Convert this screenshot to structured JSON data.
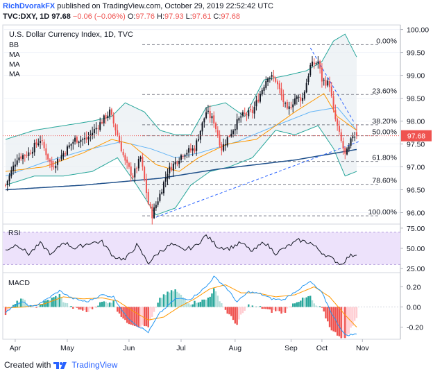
{
  "header": {
    "author": "RichDvorakFX",
    "published": "published on TradingView.com, October 29, 2019 22:52:42 UTC",
    "symbol": "TVC:DXY, 1D",
    "last": "97.68",
    "change": "−0.06 (−0.06%)",
    "ohlc_o_label": "O:",
    "ohlc_o": "97.76",
    "ohlc_h_label": "H:",
    "ohlc_h": "97.93",
    "ohlc_l_label": "L:",
    "ohlc_l": "97.61",
    "ohlc_c_label": "C:",
    "ohlc_c": "97.68"
  },
  "footer": {
    "created_with": "Created with",
    "brand": "TradingView"
  },
  "colors": {
    "up": "#26a69a",
    "down": "#ef5350",
    "candle_up": "#131722",
    "candle_down": "#ef5350",
    "bb": "#26a69a",
    "ma_short": "#ff9800",
    "ma_mid": "#64b5f6",
    "ma_long": "#1e4f8a",
    "trend": "#2962ff",
    "rsi": "#131722",
    "rsi_band": "#ede2fb",
    "macd": "#2196f3",
    "signal": "#ff9800",
    "price_tag": "#ef5350"
  },
  "chart_data": [
    {
      "type": "candlestick",
      "title": "U.S. Dollar Currency Index, 1D, TVC",
      "indicators": [
        "BB",
        "MA",
        "MA",
        "MA"
      ],
      "ylim": [
        95.75,
        100.1
      ],
      "yticks": [
        "100.00",
        "99.50",
        "99.00",
        "98.50",
        "98.00",
        "97.50",
        "97.00",
        "96.50",
        "96.00"
      ],
      "last_price": "97.68",
      "x_labels": [
        "Apr",
        "May",
        "Jun",
        "Jul",
        "Aug",
        "Sep",
        "Oct",
        "Nov"
      ],
      "fibonacci": [
        {
          "label": "0.00%",
          "value": 99.67
        },
        {
          "label": "23.60%",
          "value": 98.58
        },
        {
          "label": "38.20%",
          "value": 97.92
        },
        {
          "label": "50.00%",
          "value": 97.68
        },
        {
          "label": "61.80%",
          "value": 97.12
        },
        {
          "label": "78.60%",
          "value": 96.62
        },
        {
          "label": "100.00%",
          "value": 95.93
        }
      ],
      "anchors": {
        "price": [
          [
            0,
            96.6
          ],
          [
            6,
            97.2
          ],
          [
            12,
            97.3
          ],
          [
            18,
            97.6
          ],
          [
            24,
            97.0
          ],
          [
            30,
            97.3
          ],
          [
            36,
            97.6
          ],
          [
            42,
            97.6
          ],
          [
            48,
            97.9
          ],
          [
            54,
            98.2
          ],
          [
            58,
            97.7
          ],
          [
            62,
            97.1
          ],
          [
            66,
            96.8
          ],
          [
            70,
            97.2
          ],
          [
            74,
            96.2
          ],
          [
            76,
            95.95
          ],
          [
            80,
            96.4
          ],
          [
            84,
            96.9
          ],
          [
            88,
            97.1
          ],
          [
            92,
            97.3
          ],
          [
            98,
            97.4
          ],
          [
            104,
            98.2
          ],
          [
            108,
            98.0
          ],
          [
            112,
            97.4
          ],
          [
            116,
            97.7
          ],
          [
            122,
            98.1
          ],
          [
            128,
            98.2
          ],
          [
            132,
            98.6
          ],
          [
            136,
            99.0
          ],
          [
            140,
            98.9
          ],
          [
            146,
            98.2
          ],
          [
            150,
            98.5
          ],
          [
            154,
            98.5
          ],
          [
            158,
            99.2
          ],
          [
            162,
            99.3
          ],
          [
            164,
            98.9
          ],
          [
            168,
            98.8
          ],
          [
            170,
            98.2
          ],
          [
            173,
            97.7
          ],
          [
            176,
            97.25
          ],
          [
            178,
            97.4
          ],
          [
            180,
            97.7
          ],
          [
            182,
            97.68
          ]
        ],
        "bb_upper": [
          [
            0,
            97.6
          ],
          [
            15,
            97.8
          ],
          [
            30,
            97.9
          ],
          [
            45,
            98.0
          ],
          [
            55,
            98.1
          ],
          [
            62,
            98.4
          ],
          [
            72,
            98.2
          ],
          [
            80,
            97.8
          ],
          [
            88,
            97.7
          ],
          [
            96,
            97.7
          ],
          [
            104,
            98.3
          ],
          [
            114,
            98.4
          ],
          [
            124,
            98.1
          ],
          [
            134,
            98.9
          ],
          [
            146,
            99.0
          ],
          [
            156,
            99.1
          ],
          [
            164,
            99.3
          ],
          [
            170,
            99.75
          ],
          [
            176,
            99.9
          ],
          [
            182,
            99.4
          ]
        ],
        "bb_lower": [
          [
            0,
            96.6
          ],
          [
            15,
            96.8
          ],
          [
            30,
            96.8
          ],
          [
            45,
            96.9
          ],
          [
            58,
            97.2
          ],
          [
            68,
            96.6
          ],
          [
            78,
            95.95
          ],
          [
            88,
            96.1
          ],
          [
            96,
            96.6
          ],
          [
            106,
            96.9
          ],
          [
            116,
            97.0
          ],
          [
            128,
            97.2
          ],
          [
            140,
            97.8
          ],
          [
            150,
            97.7
          ],
          [
            162,
            97.9
          ],
          [
            170,
            97.4
          ],
          [
            176,
            96.8
          ],
          [
            182,
            96.9
          ]
        ],
        "ma_short": [
          [
            0,
            96.9
          ],
          [
            20,
            97.0
          ],
          [
            40,
            97.3
          ],
          [
            55,
            97.6
          ],
          [
            65,
            97.5
          ],
          [
            78,
            97.05
          ],
          [
            90,
            96.9
          ],
          [
            100,
            97.2
          ],
          [
            115,
            97.5
          ],
          [
            130,
            97.6
          ],
          [
            150,
            98.2
          ],
          [
            165,
            98.6
          ],
          [
            172,
            98.1
          ],
          [
            182,
            97.8
          ]
        ],
        "ma_mid": [
          [
            0,
            96.8
          ],
          [
            20,
            97.1
          ],
          [
            40,
            97.35
          ],
          [
            60,
            97.55
          ],
          [
            75,
            97.4
          ],
          [
            88,
            97.2
          ],
          [
            100,
            97.3
          ],
          [
            120,
            97.55
          ],
          [
            140,
            97.9
          ],
          [
            158,
            98.2
          ],
          [
            172,
            98.3
          ],
          [
            182,
            97.8
          ]
        ],
        "ma_long": [
          [
            0,
            96.5
          ],
          [
            40,
            96.6
          ],
          [
            80,
            96.75
          ],
          [
            110,
            96.95
          ],
          [
            150,
            97.15
          ],
          [
            182,
            97.38
          ]
        ],
        "trend_up": [
          [
            78,
            95.9
          ],
          [
            183,
            97.55
          ]
        ],
        "trend_down": [
          [
            158,
            99.6
          ],
          [
            181,
            97.95
          ]
        ]
      }
    },
    {
      "type": "line",
      "title": "RSI",
      "ylim": [
        20,
        80
      ],
      "yticks": [
        "75.00",
        "50.00",
        "25.00"
      ],
      "band": [
        30,
        70
      ],
      "anchors": [
        [
          0,
          48
        ],
        [
          6,
          55
        ],
        [
          12,
          43
        ],
        [
          18,
          56
        ],
        [
          24,
          42
        ],
        [
          30,
          58
        ],
        [
          36,
          50
        ],
        [
          44,
          57
        ],
        [
          50,
          58
        ],
        [
          56,
          40
        ],
        [
          62,
          36
        ],
        [
          68,
          54
        ],
        [
          74,
          32
        ],
        [
          80,
          46
        ],
        [
          86,
          55
        ],
        [
          92,
          48
        ],
        [
          98,
          52
        ],
        [
          104,
          66
        ],
        [
          110,
          52
        ],
        [
          116,
          50
        ],
        [
          122,
          57
        ],
        [
          128,
          46
        ],
        [
          134,
          58
        ],
        [
          140,
          44
        ],
        [
          146,
          52
        ],
        [
          152,
          60
        ],
        [
          158,
          57
        ],
        [
          164,
          45
        ],
        [
          170,
          36
        ],
        [
          174,
          30
        ],
        [
          178,
          40
        ],
        [
          182,
          43
        ]
      ]
    },
    {
      "type": "macd",
      "title": "MACD",
      "ylim": [
        -0.32,
        0.34
      ],
      "yticks": [
        "0.20",
        "0.00",
        "-0.20"
      ],
      "macd_anchors": [
        [
          0,
          -0.05
        ],
        [
          8,
          0.05
        ],
        [
          14,
          0.0
        ],
        [
          20,
          0.06
        ],
        [
          28,
          0.16
        ],
        [
          34,
          0.09
        ],
        [
          42,
          0.05
        ],
        [
          50,
          0.12
        ],
        [
          56,
          0.1
        ],
        [
          62,
          -0.08
        ],
        [
          68,
          -0.18
        ],
        [
          74,
          -0.25
        ],
        [
          80,
          -0.06
        ],
        [
          88,
          0.08
        ],
        [
          96,
          0.08
        ],
        [
          104,
          0.2
        ],
        [
          108,
          0.3
        ],
        [
          114,
          0.2
        ],
        [
          120,
          0.05
        ],
        [
          126,
          0.15
        ],
        [
          132,
          0.13
        ],
        [
          138,
          0.08
        ],
        [
          144,
          0.07
        ],
        [
          150,
          0.15
        ],
        [
          158,
          0.25
        ],
        [
          164,
          0.14
        ],
        [
          170,
          -0.1
        ],
        [
          176,
          -0.28
        ],
        [
          182,
          -0.27
        ]
      ],
      "signal_anchors": [
        [
          0,
          -0.01
        ],
        [
          10,
          0.0
        ],
        [
          20,
          0.03
        ],
        [
          30,
          0.1
        ],
        [
          40,
          0.08
        ],
        [
          50,
          0.09
        ],
        [
          58,
          0.06
        ],
        [
          66,
          -0.04
        ],
        [
          74,
          -0.13
        ],
        [
          82,
          -0.1
        ],
        [
          90,
          0.0
        ],
        [
          98,
          0.08
        ],
        [
          106,
          0.18
        ],
        [
          114,
          0.22
        ],
        [
          122,
          0.14
        ],
        [
          130,
          0.14
        ],
        [
          140,
          0.1
        ],
        [
          150,
          0.12
        ],
        [
          160,
          0.2
        ],
        [
          168,
          0.1
        ],
        [
          176,
          -0.08
        ],
        [
          182,
          -0.2
        ]
      ]
    }
  ]
}
